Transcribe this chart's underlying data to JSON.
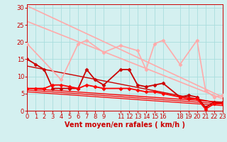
{
  "xlabel": "Vent moyen/en rafales ( km/h )",
  "bg_color": "#d4f0f0",
  "grid_color": "#aadddd",
  "x_ticks": [
    0,
    1,
    2,
    3,
    4,
    5,
    6,
    7,
    8,
    9,
    11,
    12,
    13,
    14,
    15,
    16,
    18,
    19,
    20,
    21,
    22,
    23
  ],
  "xlim": [
    0,
    23
  ],
  "ylim": [
    0,
    31
  ],
  "y_ticks": [
    0,
    5,
    10,
    15,
    20,
    25,
    30
  ],
  "lines": [
    {
      "x": [
        0,
        23
      ],
      "y": [
        30.5,
        4.0
      ],
      "color": "#ffaaaa",
      "lw": 1.2,
      "marker": null,
      "ms": 0
    },
    {
      "x": [
        0,
        23
      ],
      "y": [
        26.0,
        3.5
      ],
      "color": "#ffaaaa",
      "lw": 1.2,
      "marker": null,
      "ms": 0
    },
    {
      "x": [
        0,
        4,
        6,
        7,
        9,
        11,
        13,
        14,
        15,
        16,
        18,
        20,
        21,
        22,
        23
      ],
      "y": [
        19.5,
        9.0,
        19.5,
        20.5,
        17.0,
        19.0,
        17.5,
        12.0,
        19.5,
        20.5,
        13.5,
        20.5,
        6.0,
        4.0,
        4.5
      ],
      "color": "#ffaaaa",
      "lw": 1.2,
      "marker": "D",
      "ms": 2.5
    },
    {
      "x": [
        0,
        1,
        2,
        3,
        4,
        5,
        6,
        7,
        8,
        9,
        11,
        12,
        13,
        14,
        15,
        16,
        18,
        19,
        20,
        21,
        22,
        23
      ],
      "y": [
        15.0,
        13.5,
        12.0,
        6.5,
        6.5,
        6.5,
        6.5,
        12.0,
        9.0,
        7.5,
        12.0,
        12.0,
        7.5,
        7.0,
        7.5,
        8.0,
        4.0,
        4.5,
        4.0,
        1.0,
        2.5,
        2.5
      ],
      "color": "#cc0000",
      "lw": 1.3,
      "marker": "D",
      "ms": 2.5
    },
    {
      "x": [
        0,
        1,
        2,
        3,
        4,
        5,
        6,
        7,
        8,
        9,
        11,
        12,
        13,
        14,
        15,
        16,
        18,
        19,
        20,
        21,
        22,
        23
      ],
      "y": [
        6.5,
        6.5,
        6.5,
        7.5,
        7.5,
        7.0,
        6.5,
        7.5,
        7.0,
        6.5,
        6.5,
        6.5,
        6.0,
        5.5,
        5.5,
        5.0,
        4.0,
        3.5,
        3.5,
        0.5,
        2.0,
        2.0
      ],
      "color": "#ff0000",
      "lw": 1.3,
      "marker": "D",
      "ms": 2.5
    },
    {
      "x": [
        0,
        23
      ],
      "y": [
        13.0,
        2.0
      ],
      "color": "#cc0000",
      "lw": 1.0,
      "marker": null,
      "ms": 0
    },
    {
      "x": [
        0,
        23
      ],
      "y": [
        6.5,
        2.5
      ],
      "color": "#ff0000",
      "lw": 1.0,
      "marker": null,
      "ms": 0
    },
    {
      "x": [
        0,
        23
      ],
      "y": [
        6.0,
        2.0
      ],
      "color": "#ff0000",
      "lw": 0.9,
      "marker": null,
      "ms": 0
    },
    {
      "x": [
        0,
        23
      ],
      "y": [
        5.5,
        1.5
      ],
      "color": "#ff0000",
      "lw": 0.9,
      "marker": null,
      "ms": 0
    }
  ],
  "arrow_color": "#cc0000",
  "xlabel_color": "#cc0000",
  "xlabel_fontsize": 7,
  "tick_color": "#cc0000",
  "tick_fontsize": 6,
  "arrow_angles": [
    175,
    175,
    165,
    160,
    155,
    155,
    155,
    150,
    145,
    140,
    130,
    125,
    120,
    115,
    110,
    105,
    95,
    90,
    85,
    75,
    10,
    5
  ]
}
